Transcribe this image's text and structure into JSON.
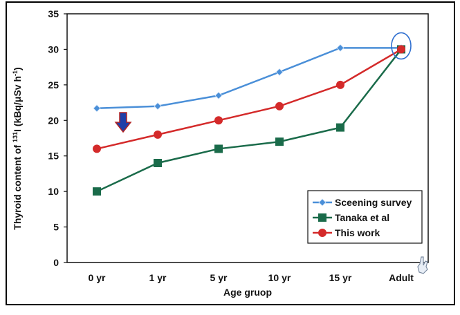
{
  "chart_data": {
    "type": "line",
    "categories": [
      "0 yr",
      "1 yr",
      "5 yr",
      "10 yr",
      "15 yr",
      "Adult"
    ],
    "xlabel": "Age gruop",
    "ylabel_parts": {
      "pre": "Thyroid content of ",
      "sup": "131",
      "mid": "I (kBq/μSv h",
      "sup2": "-1",
      "post": ")"
    },
    "ylim": [
      0,
      35
    ],
    "yticks": [
      0,
      5,
      10,
      15,
      20,
      25,
      30,
      35
    ],
    "grid": false,
    "legend_position": "bottom-right",
    "series": [
      {
        "name": "Sceening survey",
        "color": "#4a8fd8",
        "marker": "diamond",
        "values": [
          21.7,
          22,
          23.5,
          26.8,
          30.2,
          30.2
        ]
      },
      {
        "name": "Tanaka et al",
        "color": "#1a6b4a",
        "marker": "square",
        "values": [
          10,
          14,
          16,
          17,
          19,
          30
        ]
      },
      {
        "name": "This work",
        "color": "#d42a2a",
        "marker": "circle",
        "values": [
          16,
          18,
          20,
          22,
          25,
          30
        ]
      }
    ]
  },
  "annotations": {
    "arrow_color": "#1f3fa8",
    "arrow_outline": "#b22222",
    "circle_color": "#2f6fd0"
  }
}
